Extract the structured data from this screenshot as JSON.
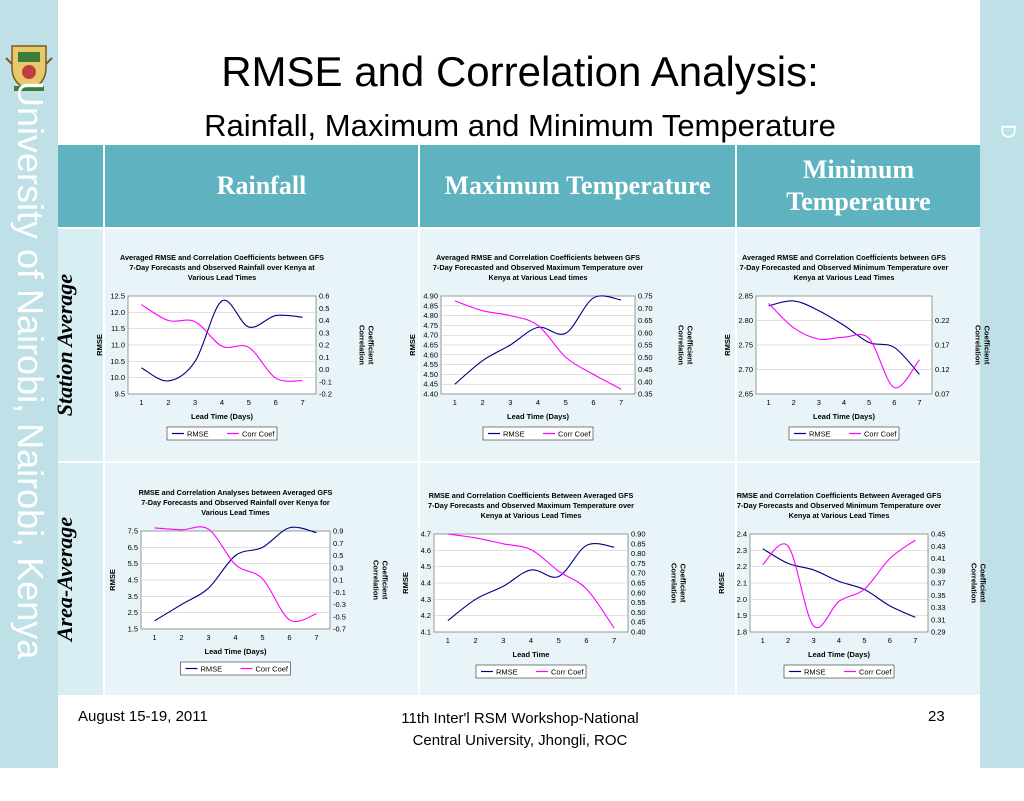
{
  "slide": {
    "title": "RMSE and Correlation Analysis:",
    "subtitle": "Rainfall, Maximum and Minimum Temperature",
    "side_text": "University of Nairobi, Nairobi, Kenya",
    "right_letter": "D",
    "footer_left": "August 15-19, 2011",
    "footer_center_line1": "11th Inter'l RSM Workshop-National",
    "footer_center_line2": "Central University, Jhongli, ROC",
    "footer_right": "23"
  },
  "table": {
    "col_headers": [
      "Rainfall",
      "Maximum Temperature",
      "Minimum Temperature"
    ],
    "row_headers": [
      "Station Average",
      "Area-Average"
    ]
  },
  "colors": {
    "rmse": "#000080",
    "corr": "#ff00ff",
    "header": "#5fb3c0",
    "row": "#d7eef2"
  },
  "chart_data": [
    {
      "type": "line",
      "title": "Averaged RMSE and Correlation Coefficients between GFS 7-Day Forecasts and Observed Rainfall over Kenya at Various Lead Times",
      "xlabel": "Lead Time (Days)",
      "ylabel": "RMSE",
      "y2label": "Correlation Coefficient",
      "x": [
        1,
        2,
        3,
        4,
        5,
        6,
        7
      ],
      "xticks": [
        "1",
        "2",
        "3",
        "4",
        "5",
        "6",
        "7"
      ],
      "ylim": [
        9.5,
        12.5
      ],
      "yticks": [
        "9.5",
        "10.0",
        "10.5",
        "11.0",
        "11.5",
        "12.0",
        "12.5"
      ],
      "y2lim": [
        -0.2,
        0.6
      ],
      "y2ticks": [
        "-0.2",
        "-0.1",
        "0.0",
        "0.1",
        "0.2",
        "0.3",
        "0.4",
        "0.5",
        "0.6"
      ],
      "series": [
        {
          "name": "RMSE",
          "axis": "left",
          "values": [
            10.3,
            9.9,
            10.5,
            12.35,
            11.55,
            11.9,
            11.85
          ]
        },
        {
          "name": "Corr Coef",
          "axis": "right",
          "values": [
            0.53,
            0.4,
            0.39,
            0.19,
            0.18,
            -0.07,
            -0.09
          ]
        }
      ],
      "legend": "bottom"
    },
    {
      "type": "line",
      "title": "Averaged RMSE and Correlation Coefficients between GFS 7-Day Forecasted and Observed Maximum Temperature over Kenya at Various Lead times",
      "xlabel": "Lead Time (Days)",
      "ylabel": "RMSE",
      "y2label": "Correlation Coefficient",
      "x": [
        1,
        2,
        3,
        4,
        5,
        6,
        7
      ],
      "xticks": [
        "1",
        "2",
        "3",
        "4",
        "5",
        "6",
        "7"
      ],
      "ylim": [
        4.4,
        4.9
      ],
      "yticks": [
        "4.40",
        "4.45",
        "4.50",
        "4.55",
        "4.60",
        "4.65",
        "4.70",
        "4.75",
        "4.80",
        "4.85",
        "4.90"
      ],
      "y2lim": [
        0.35,
        0.75
      ],
      "y2ticks": [
        "0.35",
        "0.40",
        "0.45",
        "0.50",
        "0.55",
        "0.60",
        "0.65",
        "0.70",
        "0.75"
      ],
      "series": [
        {
          "name": "RMSE",
          "axis": "left",
          "values": [
            4.45,
            4.57,
            4.65,
            4.74,
            4.71,
            4.89,
            4.88
          ]
        },
        {
          "name": "Corr Coef",
          "axis": "right",
          "values": [
            0.73,
            0.69,
            0.67,
            0.63,
            0.5,
            0.43,
            0.37
          ]
        }
      ],
      "legend": "bottom"
    },
    {
      "type": "line",
      "title": "Averaged RMSE and Correlation Coefficients between GFS 7-Day Forecasted and Observed Minimum Temperature over Kenya at Various Lead Times",
      "xlabel": "Lead Time (Days)",
      "ylabel": "RMSE",
      "y2label": "Correlation Coefficient",
      "x": [
        1,
        2,
        3,
        4,
        5,
        6,
        7
      ],
      "xticks": [
        "1",
        "2",
        "3",
        "4",
        "5",
        "6",
        "7"
      ],
      "ylim": [
        2.65,
        2.85
      ],
      "yticks": [
        "2.65",
        "2.70",
        "2.75",
        "2.80",
        "2.85"
      ],
      "y2lim": [
        0.07,
        0.27
      ],
      "y2ticks": [
        "0.07",
        "0.12",
        "0.17",
        "0.22"
      ],
      "series": [
        {
          "name": "RMSE",
          "axis": "left",
          "values": [
            2.83,
            2.84,
            2.82,
            2.79,
            2.755,
            2.745,
            2.69
          ]
        },
        {
          "name": "Corr Coef",
          "axis": "right",
          "values": [
            0.255,
            0.205,
            0.182,
            0.186,
            0.183,
            0.083,
            0.14
          ]
        }
      ],
      "legend": "bottom"
    },
    {
      "type": "line",
      "title": "RMSE and Correlation Analyses between Averaged GFS 7-Day Forecasts and Observed Rainfall over Kenya for Various Lead Times",
      "xlabel": "Lead Time (Days)",
      "ylabel": "RMSE",
      "y2label": "Correlation Coefficient",
      "x": [
        1,
        2,
        3,
        4,
        5,
        6,
        7
      ],
      "xticks": [
        "1",
        "2",
        "3",
        "4",
        "5",
        "6",
        "7"
      ],
      "ylim": [
        1.5,
        7.5
      ],
      "yticks": [
        "1.5",
        "2.5",
        "3.5",
        "4.5",
        "5.5",
        "6.5",
        "7.5"
      ],
      "y2lim": [
        -0.7,
        0.9
      ],
      "y2ticks": [
        "-0.7",
        "-0.5",
        "-0.3",
        "-0.1",
        "0.1",
        "0.3",
        "0.5",
        "0.7",
        "0.9"
      ],
      "series": [
        {
          "name": "RMSE",
          "axis": "left",
          "values": [
            2.0,
            3.0,
            4.0,
            6.0,
            6.5,
            7.7,
            7.4
          ]
        },
        {
          "name": "Corr Coef",
          "axis": "right",
          "values": [
            0.95,
            0.92,
            0.93,
            0.35,
            0.12,
            -0.55,
            -0.45
          ]
        }
      ],
      "legend": "bottom"
    },
    {
      "type": "line",
      "title": "RMSE and Correlation Coefficients Between Averaged GFS 7-Day Forecasts and Observed Maximum Temperature over Kenya at Various Lead Times",
      "xlabel": "Lead Time",
      "ylabel": "RMSE",
      "y2label": "Correlation Coefficient",
      "x": [
        1,
        2,
        3,
        4,
        5,
        6,
        7
      ],
      "xticks": [
        "1",
        "2",
        "3",
        "4",
        "5",
        "6",
        "7"
      ],
      "ylim": [
        4.1,
        4.7
      ],
      "yticks": [
        "4.1",
        "4.2",
        "4.3",
        "4.4",
        "4.5",
        "4.6",
        "4.7"
      ],
      "y2lim": [
        0.4,
        0.9
      ],
      "y2ticks": [
        "0.40",
        "0.45",
        "0.50",
        "0.55",
        "0.60",
        "0.65",
        "0.70",
        "0.75",
        "0.80",
        "0.85",
        "0.90"
      ],
      "series": [
        {
          "name": "RMSE",
          "axis": "left",
          "values": [
            4.17,
            4.3,
            4.38,
            4.48,
            4.44,
            4.63,
            4.62
          ]
        },
        {
          "name": "Corr Coef",
          "axis": "right",
          "values": [
            0.9,
            0.88,
            0.85,
            0.82,
            0.71,
            0.62,
            0.42
          ]
        }
      ],
      "legend": "bottom"
    },
    {
      "type": "line",
      "title": "RMSE and Correlation Coefficients Between Averaged GFS 7-Day Forecasts and Observed Minimum Temperature over Kenya at Various Lead Times",
      "xlabel": "Lead Time (Days)",
      "ylabel": "RMSE",
      "y2label": "Correlation Coefficient",
      "x": [
        1,
        2,
        3,
        4,
        5,
        6,
        7
      ],
      "xticks": [
        "1",
        "2",
        "3",
        "4",
        "5",
        "6",
        "7"
      ],
      "ylim": [
        1.8,
        2.4
      ],
      "yticks": [
        "1.8",
        "1.9",
        "2.0",
        "2.1",
        "2.2",
        "2.3",
        "2.4"
      ],
      "y2lim": [
        0.29,
        0.45
      ],
      "y2ticks": [
        "0.29",
        "0.31",
        "0.33",
        "0.35",
        "0.37",
        "0.39",
        "0.41",
        "0.43",
        "0.45"
      ],
      "series": [
        {
          "name": "RMSE",
          "axis": "left",
          "values": [
            2.31,
            2.22,
            2.18,
            2.11,
            2.06,
            1.96,
            1.89
          ]
        },
        {
          "name": "Corr Coef",
          "axis": "right",
          "values": [
            0.4,
            0.43,
            0.3,
            0.34,
            0.36,
            0.41,
            0.44
          ]
        }
      ],
      "legend": "bottom"
    }
  ]
}
